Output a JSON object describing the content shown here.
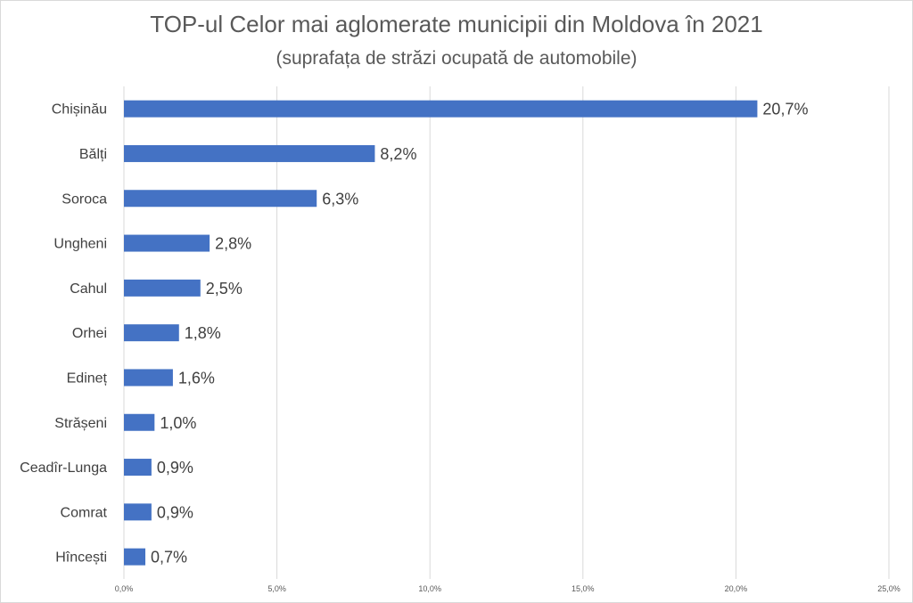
{
  "chart_data": {
    "type": "bar",
    "orientation": "horizontal",
    "title": "TOP-ul Celor mai aglomerate municipii din Moldova în 2021",
    "subtitle": "(suprafața de străzi ocupată de automobile)",
    "categories": [
      "Chișinău",
      "Bălți",
      "Soroca",
      "Ungheni",
      "Cahul",
      "Orhei",
      "Edineț",
      "Strășeni",
      "Ceadîr-Lunga",
      "Comrat",
      "Hîncești"
    ],
    "values": [
      20.7,
      8.2,
      6.3,
      2.8,
      2.5,
      1.8,
      1.6,
      1.0,
      0.9,
      0.9,
      0.7
    ],
    "data_labels": [
      "20,7%",
      "8,2%",
      "6,3%",
      "2,8%",
      "2,5%",
      "1,8%",
      "1,6%",
      "1,0%",
      "0,9%",
      "0,9%",
      "0,7%"
    ],
    "x_ticks": [
      0,
      5,
      10,
      15,
      20,
      25
    ],
    "x_tick_labels": [
      "0,0%",
      "5,0%",
      "10,0%",
      "15,0%",
      "20,0%",
      "25,0%"
    ],
    "xlim": [
      0,
      25
    ],
    "grid": "vertical",
    "legend": "none",
    "bar_color": "#4472C4",
    "grid_color": "#d9d9d9"
  }
}
